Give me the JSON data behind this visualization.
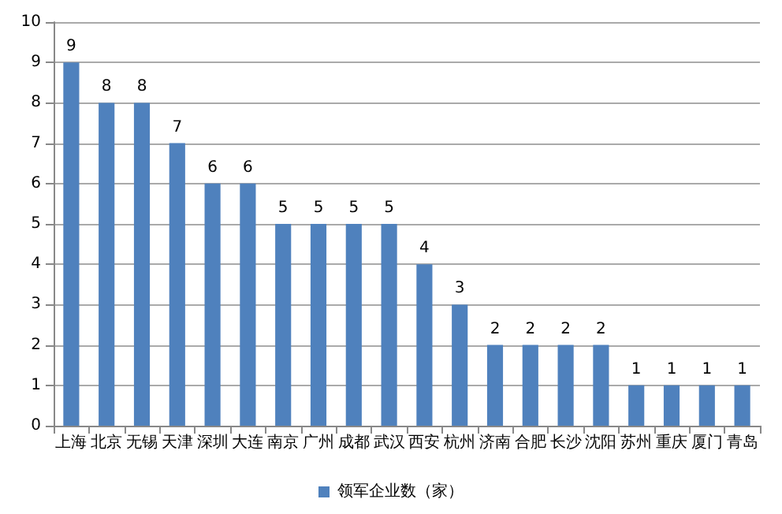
{
  "chart_data": {
    "type": "bar",
    "categories": [
      "上海",
      "北京",
      "无锡",
      "天津",
      "深圳",
      "大连",
      "南京",
      "广州",
      "成都",
      "武汉",
      "西安",
      "杭州",
      "济南",
      "合肥",
      "长沙",
      "沈阳",
      "苏州",
      "重庆",
      "厦门",
      "青岛"
    ],
    "series": [
      {
        "name": "领军企业数（家）",
        "color": "#4f81bd",
        "values": [
          9,
          8,
          8,
          7,
          6,
          6,
          5,
          5,
          5,
          5,
          4,
          3,
          2,
          2,
          2,
          2,
          1,
          1,
          1,
          1
        ]
      }
    ],
    "ylim": [
      0,
      10
    ],
    "yticks": [
      0,
      1,
      2,
      3,
      4,
      5,
      6,
      7,
      8,
      9,
      10
    ],
    "grid": "y",
    "legend": "bottom",
    "data_labels": true
  }
}
